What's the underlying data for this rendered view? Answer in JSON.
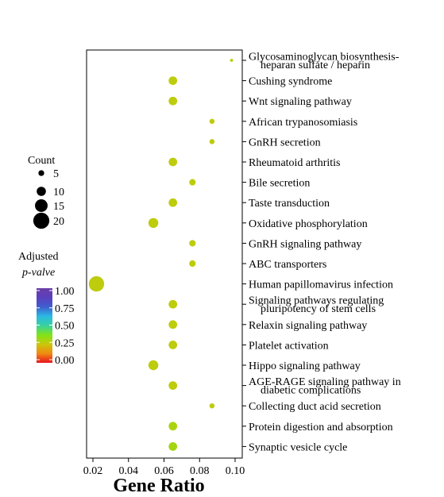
{
  "chart_data": {
    "type": "scatter",
    "title": "",
    "xlabel": "Gene Ratio",
    "ylabel": "",
    "xlim": [
      0.015,
      0.102
    ],
    "xticks": [
      0.02,
      0.04,
      0.06,
      0.08,
      0.1
    ],
    "xtick_labels": [
      "0.02",
      "0.04",
      "0.06",
      "0.08",
      "0.10"
    ],
    "grid": false,
    "points": [
      {
        "term": "Glycosaminoglycan biosynthesis-heparan sulfate / heparin",
        "label_lines": [
          "Glycosaminoglycan biosynthesis-",
          "heparan sulfate / heparin"
        ],
        "gene_ratio": 0.098,
        "count": 1,
        "p_adjust": 0.28
      },
      {
        "term": "Cushing syndrome",
        "label_lines": [
          "Cushing syndrome"
        ],
        "gene_ratio": 0.065,
        "count": 9,
        "p_adjust": 0.27
      },
      {
        "term": "Wnt signaling pathway",
        "label_lines": [
          "Wnt signaling pathway"
        ],
        "gene_ratio": 0.065,
        "count": 9,
        "p_adjust": 0.27
      },
      {
        "term": "African trypanosomiasis",
        "label_lines": [
          "African trypanosomiasis"
        ],
        "gene_ratio": 0.087,
        "count": 4,
        "p_adjust": 0.27
      },
      {
        "term": "GnRH secretion",
        "label_lines": [
          "GnRH secretion"
        ],
        "gene_ratio": 0.087,
        "count": 4,
        "p_adjust": 0.27
      },
      {
        "term": "Rheumatoid arthritis",
        "label_lines": [
          "Rheumatoid arthritis"
        ],
        "gene_ratio": 0.065,
        "count": 9,
        "p_adjust": 0.27
      },
      {
        "term": "Bile secretion",
        "label_lines": [
          "Bile secretion"
        ],
        "gene_ratio": 0.076,
        "count": 6,
        "p_adjust": 0.27
      },
      {
        "term": "Taste transduction",
        "label_lines": [
          "Taste transduction"
        ],
        "gene_ratio": 0.065,
        "count": 9,
        "p_adjust": 0.27
      },
      {
        "term": "Oxidative phosphorylation",
        "label_lines": [
          "Oxidative phosphorylation"
        ],
        "gene_ratio": 0.054,
        "count": 11,
        "p_adjust": 0.27
      },
      {
        "term": "GnRH signaling pathway",
        "label_lines": [
          "GnRH signaling pathway"
        ],
        "gene_ratio": 0.076,
        "count": 6,
        "p_adjust": 0.27
      },
      {
        "term": "ABC transporters",
        "label_lines": [
          "ABC transporters"
        ],
        "gene_ratio": 0.076,
        "count": 6,
        "p_adjust": 0.27
      },
      {
        "term": "Human papillomavirus infection",
        "label_lines": [
          "Human papillomavirus infection"
        ],
        "gene_ratio": 0.022,
        "count": 19,
        "p_adjust": 0.27
      },
      {
        "term": "Signaling pathways regulating pluripotency of stem cells",
        "label_lines": [
          "Signaling pathways regulating",
          "pluripotency of stem cells"
        ],
        "gene_ratio": 0.065,
        "count": 9,
        "p_adjust": 0.27
      },
      {
        "term": "Relaxin signaling pathway",
        "label_lines": [
          "Relaxin signaling pathway"
        ],
        "gene_ratio": 0.065,
        "count": 9,
        "p_adjust": 0.27
      },
      {
        "term": "Platelet activation",
        "label_lines": [
          "Platelet activation"
        ],
        "gene_ratio": 0.065,
        "count": 9,
        "p_adjust": 0.27
      },
      {
        "term": "Hippo signaling pathway",
        "label_lines": [
          "Hippo signaling pathway"
        ],
        "gene_ratio": 0.054,
        "count": 11,
        "p_adjust": 0.27
      },
      {
        "term": "AGE-RAGE signaling pathway in diabetic complications",
        "label_lines": [
          "AGE-RAGE signaling pathway in",
          "diabetic complications"
        ],
        "gene_ratio": 0.065,
        "count": 9,
        "p_adjust": 0.27
      },
      {
        "term": "Collecting duct acid secretion",
        "label_lines": [
          "Collecting duct acid secretion"
        ],
        "gene_ratio": 0.087,
        "count": 4,
        "p_adjust": 0.27
      },
      {
        "term": "Protein digestion and absorption",
        "label_lines": [
          "Protein digestion and absorption"
        ],
        "gene_ratio": 0.065,
        "count": 9,
        "p_adjust": 0.3
      },
      {
        "term": "Synaptic vesicle cycle",
        "label_lines": [
          "Synaptic vesicle cycle"
        ],
        "gene_ratio": 0.065,
        "count": 9,
        "p_adjust": 0.31
      }
    ],
    "size_legend": {
      "title": "Count",
      "values": [
        5,
        10,
        15,
        20
      ],
      "labels": [
        "5",
        "10",
        "15",
        "20"
      ]
    },
    "color_legend": {
      "title_line1": "Adjusted",
      "title_line2": "p-valve",
      "ticks": [
        1.0,
        0.75,
        0.5,
        0.25,
        0.0
      ],
      "tick_labels": [
        "1.00",
        "0.75",
        "0.50",
        "0.25",
        "0.00"
      ],
      "colormap": [
        "#e8141f",
        "#f08a13",
        "#c9c80a",
        "#7fe319",
        "#38d2a0",
        "#2bb9e3",
        "#3f5fd0",
        "#5a3fbd",
        "#6b3fa8"
      ]
    }
  }
}
